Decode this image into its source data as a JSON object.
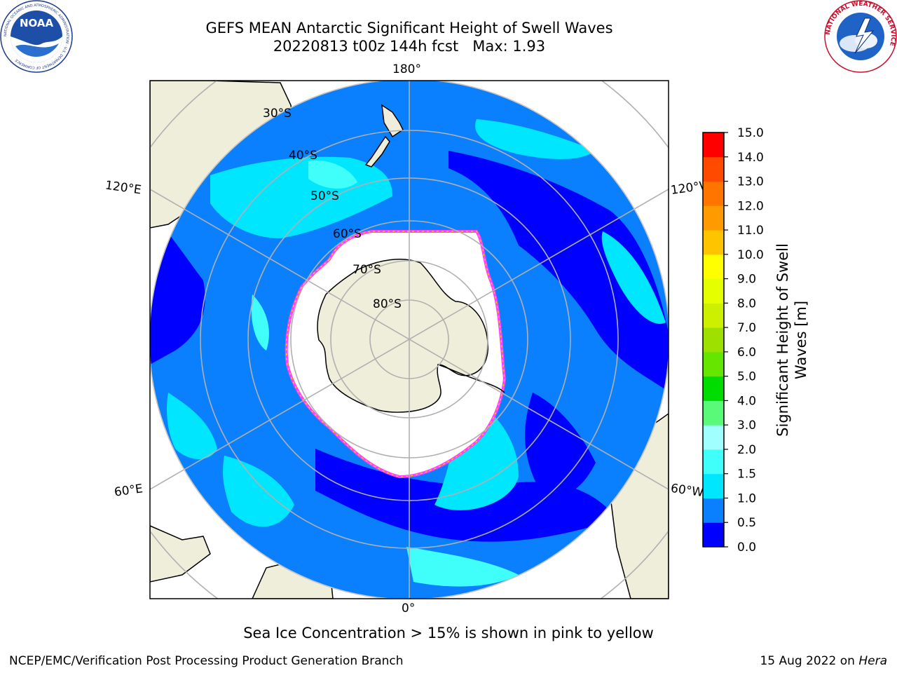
{
  "title": {
    "line1": "GEFS MEAN Antarctic Significant Height of Swell Waves",
    "line2": "20220813 t00z 144h fcst   Max: 1.93"
  },
  "logos": {
    "noaa": {
      "text": "NOAA",
      "ring": "NATIONAL OCEANIC AND ATMOSPHERIC ADMINISTRATION · U.S. DEPARTMENT OF COMMERCE"
    },
    "nws": {
      "ring": "NATIONAL WEATHER SERVICE"
    }
  },
  "map": {
    "projection": "south-polar-stereographic",
    "longitude_labels": {
      "top": "180°",
      "bottom": "0°",
      "upper_left": "120°E",
      "lower_left": "60°E",
      "upper_right": "120°W",
      "lower_right": "60°W"
    },
    "latitude_labels": [
      "30°S",
      "40°S",
      "50°S",
      "60°S",
      "70°S",
      "80°S"
    ],
    "colors": {
      "land": "#efeedb",
      "sea_ice_region": "#ffffff",
      "grid": "#b0b0b0",
      "coast": "#000000"
    }
  },
  "colorbar": {
    "label": "Significant Height of Swell Waves [m]",
    "label_line1": "Significant Height of Swell",
    "label_line2": "Waves [m]",
    "ticks": [
      "0.0",
      "0.5",
      "1.0",
      "1.5",
      "2.0",
      "3.0",
      "4.0",
      "5.0",
      "6.0",
      "7.0",
      "8.0",
      "9.0",
      "10.0",
      "11.0",
      "12.0",
      "13.0",
      "14.0",
      "15.0"
    ],
    "colors": [
      "#0000ff",
      "#0a80ff",
      "#00e6ff",
      "#40fffa",
      "#a0ffff",
      "#58fa78",
      "#00dc00",
      "#64e600",
      "#9ee000",
      "#ccf000",
      "#e6ff00",
      "#ffff00",
      "#ffc400",
      "#ff9a00",
      "#ff7500",
      "#ff4a00",
      "#ff0000"
    ]
  },
  "note": "Sea Ice Concentration > 15% is shown in pink to yellow",
  "footer": {
    "credit": "NCEP/EMC/Verification Post Processing Product Generation Branch",
    "date": "15 Aug 2022 on ",
    "machine": "Hera"
  }
}
